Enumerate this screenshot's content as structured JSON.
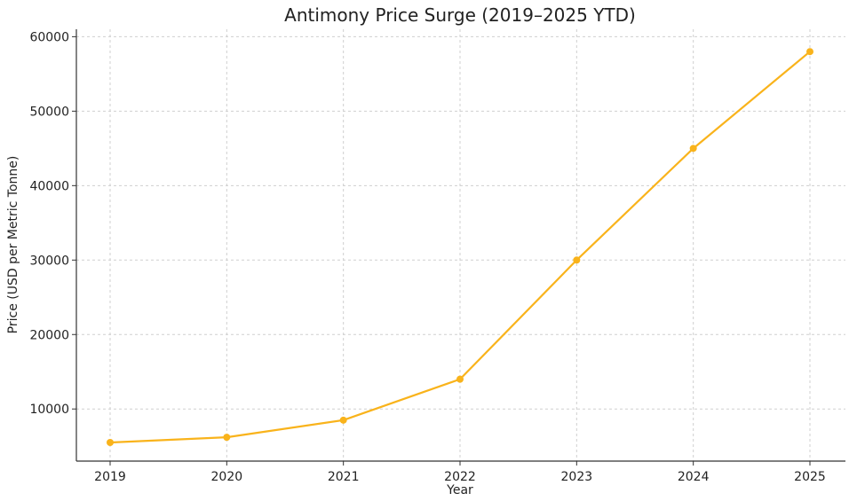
{
  "chart_data": {
    "type": "line",
    "title": "Antimony Price Surge (2019–2025 YTD)",
    "xlabel": "Year",
    "ylabel": "Price (USD per Metric Tonne)",
    "x": [
      "2019",
      "2020",
      "2021",
      "2022",
      "2023",
      "2024",
      "2025"
    ],
    "series": [
      {
        "values": [
          5500,
          6200,
          8500,
          14000,
          30000,
          45000,
          58000
        ],
        "color": "#f9b31b"
      }
    ],
    "yticks": [
      10000,
      20000,
      30000,
      40000,
      50000,
      60000
    ],
    "ylim": [
      3000,
      61000
    ],
    "grid": true,
    "legend": "none"
  }
}
